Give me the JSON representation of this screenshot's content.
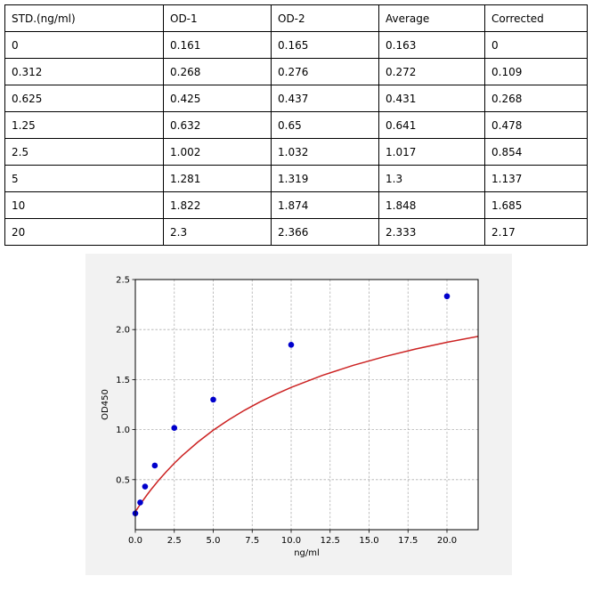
{
  "table": {
    "headers": [
      "STD.(ng/ml)",
      "OD-1",
      "OD-2",
      "Average",
      "Corrected"
    ],
    "rows": [
      [
        "0",
        "0.161",
        "0.165",
        "0.163",
        "0"
      ],
      [
        "0.312",
        "0.268",
        "0.276",
        "0.272",
        "0.109"
      ],
      [
        "0.625",
        "0.425",
        "0.437",
        "0.431",
        "0.268"
      ],
      [
        "1.25",
        "0.632",
        "0.65",
        "0.641",
        "0.478"
      ],
      [
        "2.5",
        "1.002",
        "1.032",
        "1.017",
        "0.854"
      ],
      [
        "5",
        "1.281",
        "1.319",
        "1.3",
        "1.137"
      ],
      [
        "10",
        "1.822",
        "1.874",
        "1.848",
        "1.685"
      ],
      [
        "20",
        "2.3",
        "2.366",
        "2.333",
        "2.17"
      ]
    ]
  },
  "chart_data": {
    "type": "scatter",
    "xlabel": "ng/ml",
    "ylabel": "OD450",
    "xlim": [
      0,
      22
    ],
    "ylim": [
      0,
      2.5
    ],
    "xticks": [
      "0.0",
      "2.5",
      "5.0",
      "7.5",
      "10.0",
      "12.5",
      "15.0",
      "17.5",
      "20.0"
    ],
    "yticks": [
      "0.5",
      "1.0",
      "1.5",
      "2.0",
      "2.5"
    ],
    "grid": true,
    "points": {
      "x": [
        0,
        0.312,
        0.625,
        1.25,
        2.5,
        5,
        10,
        20
      ],
      "y": [
        0.163,
        0.272,
        0.431,
        0.641,
        1.017,
        1.3,
        1.848,
        2.333
      ],
      "color": "#0000cc"
    },
    "fit_curve": {
      "x": [
        0,
        0.25,
        0.5,
        0.75,
        1,
        1.5,
        2,
        2.5,
        3,
        4,
        5,
        6,
        7,
        8,
        9,
        10,
        12,
        14,
        16,
        18,
        20,
        22
      ],
      "y": [
        0.18,
        0.238,
        0.294,
        0.348,
        0.399,
        0.495,
        0.582,
        0.664,
        0.739,
        0.874,
        0.994,
        1.099,
        1.193,
        1.277,
        1.353,
        1.422,
        1.542,
        1.643,
        1.73,
        1.806,
        1.873,
        1.932
      ],
      "color": "#cc2222"
    }
  }
}
